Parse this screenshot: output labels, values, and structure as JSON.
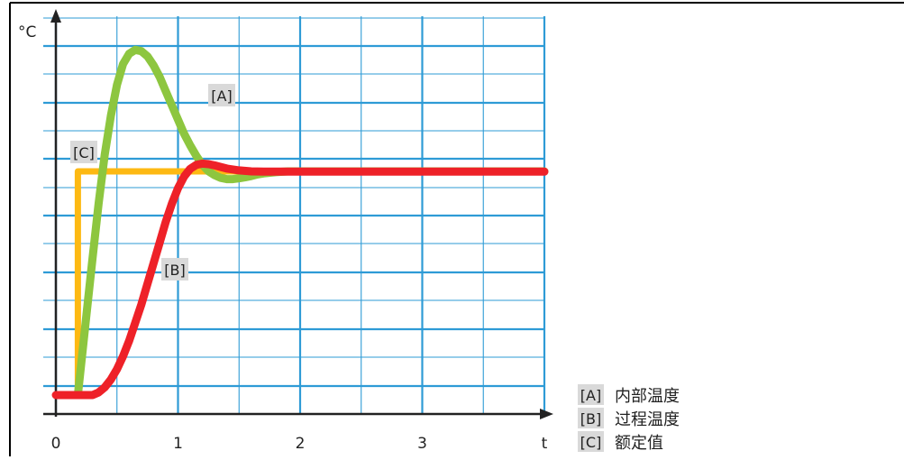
{
  "chart_data": {
    "type": "line",
    "title": "",
    "xlabel": "t",
    "ylabel": "°C",
    "x_ticks": [
      "0",
      "1",
      "2",
      "3"
    ],
    "xlim": [
      0,
      4
    ],
    "ylim": [
      -0.1,
      1.4
    ],
    "grid": true,
    "legend_position": "bottom-right",
    "colors": {
      "A": "#8dc63f",
      "B": "#ee2128",
      "C": "#fdb913",
      "grid": "#2e9bd6",
      "axis": "#222222",
      "label_bg": "#d9d9d9"
    },
    "series": [
      {
        "key": "A",
        "tag": "[A]",
        "name": "内部温度",
        "x": [
          0.18,
          0.25,
          0.3,
          0.35,
          0.4,
          0.45,
          0.5,
          0.55,
          0.6,
          0.65,
          0.7,
          0.75,
          0.8,
          0.85,
          0.9,
          0.95,
          1.0,
          1.05,
          1.1,
          1.15,
          1.2,
          1.25,
          1.3,
          1.35,
          1.4,
          1.45,
          1.5,
          1.55,
          1.6,
          1.65,
          1.7,
          1.8,
          1.9,
          2.0,
          2.5,
          3.0,
          3.5,
          4.0
        ],
        "y": [
          0.0,
          0.31,
          0.53,
          0.74,
          0.93,
          1.08,
          1.2,
          1.28,
          1.32,
          1.335,
          1.33,
          1.31,
          1.275,
          1.23,
          1.175,
          1.12,
          1.065,
          1.01,
          0.965,
          0.925,
          0.89,
          0.865,
          0.85,
          0.84,
          0.835,
          0.835,
          0.838,
          0.842,
          0.847,
          0.853,
          0.857,
          0.862,
          0.865,
          0.865,
          0.865,
          0.865,
          0.865,
          0.865
        ]
      },
      {
        "key": "B",
        "tag": "[B]",
        "name": "过程温度",
        "x": [
          0.0,
          0.3,
          0.35,
          0.4,
          0.45,
          0.5,
          0.55,
          0.6,
          0.65,
          0.7,
          0.75,
          0.8,
          0.85,
          0.9,
          0.95,
          1.0,
          1.05,
          1.1,
          1.15,
          1.2,
          1.25,
          1.3,
          1.35,
          1.4,
          1.5,
          1.6,
          1.7,
          1.8,
          1.9,
          2.0,
          2.5,
          3.0,
          3.5,
          4.0
        ],
        "y": [
          0.0,
          0.0,
          0.01,
          0.03,
          0.06,
          0.1,
          0.15,
          0.21,
          0.28,
          0.35,
          0.43,
          0.51,
          0.59,
          0.67,
          0.74,
          0.8,
          0.845,
          0.875,
          0.89,
          0.895,
          0.893,
          0.888,
          0.882,
          0.876,
          0.869,
          0.865,
          0.864,
          0.864,
          0.864,
          0.864,
          0.864,
          0.864,
          0.864,
          0.864
        ]
      },
      {
        "key": "C",
        "tag": "[C]",
        "name": "额定值",
        "x": [
          0.18,
          0.18,
          1.55
        ],
        "y": [
          0.0,
          0.865,
          0.865
        ]
      }
    ],
    "curve_labels": [
      {
        "key": "A",
        "text": "[A]"
      },
      {
        "key": "B",
        "text": "[B]"
      },
      {
        "key": "C",
        "text": "[C]"
      }
    ],
    "legend": [
      {
        "key": "A",
        "tag": "[A]",
        "label": "内部温度"
      },
      {
        "key": "B",
        "tag": "[B]",
        "label": "过程温度"
      },
      {
        "key": "C",
        "tag": "[C]",
        "label": "额定值"
      }
    ]
  }
}
